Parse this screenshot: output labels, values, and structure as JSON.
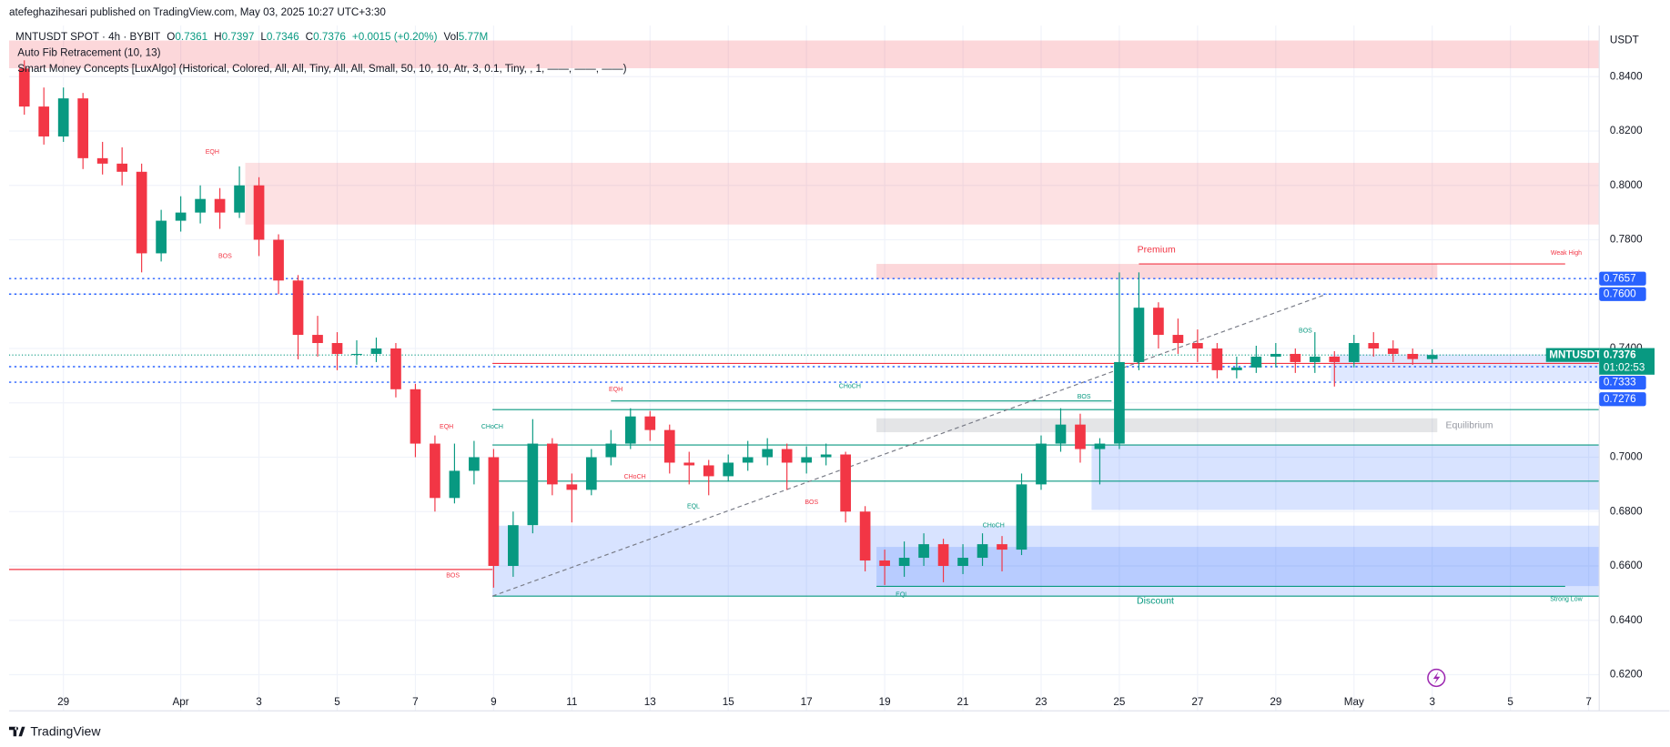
{
  "header": {
    "author_line": "atefeghazihesari published on TradingView.com, May 03, 2025 10:27 UTC+3:30"
  },
  "footer": {
    "brand": "TradingView"
  },
  "chart_data": {
    "type": "candlestick",
    "symbol": "MNTUSDT SPOT · 4h · BYBIT",
    "ohlc_legend": [
      {
        "label": "O",
        "value": "0.7361"
      },
      {
        "label": "H",
        "value": "0.7397"
      },
      {
        "label": "L",
        "value": "0.7346"
      },
      {
        "label": "C",
        "value": "0.7376"
      }
    ],
    "change": "+0.0015 (+0.20%)",
    "volume_label": "Vol",
    "volume": "5.77M",
    "indicators": [
      "Auto Fib Retracement (10, 13)",
      "Smart Money Concepts [LuxAlgo] (Historical, Colored, All, All, Tiny, All, All, Small, 50, 10, 10, Atr, 3, 0.1, Tiny, , 1, ——, ——, ——)"
    ],
    "currency": "USDT",
    "ticker": "MNTUSDT",
    "last_price": 0.7376,
    "countdown": "01:02:53",
    "up_color": "#089981",
    "down_color": "#f23645",
    "grid": true,
    "xlim": [
      -0.39,
      40.27
    ],
    "ylim": [
      0.6067,
      0.8588
    ],
    "xticks": [
      {
        "value": 1,
        "label": "29"
      },
      {
        "value": 4,
        "label": "Apr"
      },
      {
        "value": 6,
        "label": "3"
      },
      {
        "value": 8,
        "label": "5"
      },
      {
        "value": 10,
        "label": "7"
      },
      {
        "value": 12,
        "label": "9"
      },
      {
        "value": 14,
        "label": "11"
      },
      {
        "value": 16,
        "label": "13"
      },
      {
        "value": 18,
        "label": "15"
      },
      {
        "value": 20,
        "label": "17"
      },
      {
        "value": 22,
        "label": "19"
      },
      {
        "value": 24,
        "label": "21"
      },
      {
        "value": 26,
        "label": "23"
      },
      {
        "value": 28,
        "label": "25"
      },
      {
        "value": 30,
        "label": "27"
      },
      {
        "value": 32,
        "label": "29"
      },
      {
        "value": 34,
        "label": "May"
      },
      {
        "value": 36,
        "label": "3"
      },
      {
        "value": 38,
        "label": "5"
      },
      {
        "value": 40,
        "label": "7"
      }
    ],
    "yticks": [
      {
        "value": 0.62,
        "label": "0.6200"
      },
      {
        "value": 0.64,
        "label": "0.6400"
      },
      {
        "value": 0.66,
        "label": "0.6600"
      },
      {
        "value": 0.68,
        "label": "0.6800"
      },
      {
        "value": 0.7,
        "label": "0.7000"
      },
      {
        "value": 0.72,
        "label": "0.7200"
      },
      {
        "value": 0.74,
        "label": "0.7400"
      },
      {
        "value": 0.76,
        "label": "0.7600"
      },
      {
        "value": 0.78,
        "label": "0.7800"
      },
      {
        "value": 0.8,
        "label": "0.8000"
      },
      {
        "value": 0.82,
        "label": "0.8200"
      },
      {
        "value": 0.84,
        "label": "0.8400"
      }
    ],
    "x": [
      0,
      0.5,
      1,
      1.5,
      2,
      2.5,
      3,
      3.5,
      4,
      4.5,
      5,
      5.5,
      6,
      6.5,
      7,
      7.5,
      8,
      8.5,
      9,
      9.5,
      10,
      10.5,
      11,
      11.5,
      12,
      12.5,
      13,
      13.5,
      14,
      14.5,
      15,
      15.5,
      16,
      16.5,
      17,
      17.5,
      18,
      18.5,
      19,
      19.5,
      20,
      20.5,
      21,
      21.5,
      22,
      22.5,
      23,
      23.5,
      24,
      24.5,
      25,
      25.5,
      26,
      26.5,
      27,
      27.5,
      28,
      28.5,
      29,
      29.5,
      30,
      30.5,
      31,
      31.5,
      32,
      32.5,
      33,
      33.5,
      34,
      34.5,
      35,
      35.5,
      36
    ],
    "candles": [
      [
        0.843,
        0.846,
        0.826,
        0.829
      ],
      [
        0.829,
        0.836,
        0.815,
        0.818
      ],
      [
        0.818,
        0.836,
        0.816,
        0.832
      ],
      [
        0.832,
        0.834,
        0.806,
        0.81
      ],
      [
        0.81,
        0.816,
        0.804,
        0.808
      ],
      [
        0.808,
        0.814,
        0.8,
        0.805
      ],
      [
        0.805,
        0.808,
        0.768,
        0.775
      ],
      [
        0.775,
        0.791,
        0.772,
        0.787
      ],
      [
        0.787,
        0.796,
        0.783,
        0.79
      ],
      [
        0.79,
        0.8,
        0.786,
        0.795
      ],
      [
        0.795,
        0.799,
        0.784,
        0.79
      ],
      [
        0.79,
        0.807,
        0.788,
        0.8
      ],
      [
        0.8,
        0.803,
        0.774,
        0.78
      ],
      [
        0.78,
        0.782,
        0.76,
        0.765
      ],
      [
        0.765,
        0.767,
        0.736,
        0.745
      ],
      [
        0.745,
        0.752,
        0.737,
        0.742
      ],
      [
        0.742,
        0.746,
        0.732,
        0.738
      ],
      [
        0.738,
        0.743,
        0.734,
        0.738
      ],
      [
        0.738,
        0.744,
        0.735,
        0.74
      ],
      [
        0.74,
        0.742,
        0.722,
        0.725
      ],
      [
        0.725,
        0.727,
        0.7,
        0.705
      ],
      [
        0.705,
        0.708,
        0.68,
        0.685
      ],
      [
        0.685,
        0.705,
        0.683,
        0.695
      ],
      [
        0.695,
        0.706,
        0.69,
        0.7
      ],
      [
        0.7,
        0.703,
        0.652,
        0.66
      ],
      [
        0.66,
        0.68,
        0.656,
        0.675
      ],
      [
        0.675,
        0.714,
        0.672,
        0.705
      ],
      [
        0.705,
        0.707,
        0.686,
        0.69
      ],
      [
        0.69,
        0.694,
        0.676,
        0.688
      ],
      [
        0.688,
        0.703,
        0.686,
        0.7
      ],
      [
        0.7,
        0.71,
        0.697,
        0.705
      ],
      [
        0.705,
        0.718,
        0.703,
        0.715
      ],
      [
        0.715,
        0.717,
        0.706,
        0.71
      ],
      [
        0.71,
        0.712,
        0.694,
        0.698
      ],
      [
        0.698,
        0.702,
        0.69,
        0.697
      ],
      [
        0.697,
        0.699,
        0.686,
        0.693
      ],
      [
        0.693,
        0.701,
        0.691,
        0.698
      ],
      [
        0.698,
        0.706,
        0.695,
        0.7
      ],
      [
        0.7,
        0.707,
        0.697,
        0.703
      ],
      [
        0.703,
        0.705,
        0.688,
        0.698
      ],
      [
        0.698,
        0.704,
        0.694,
        0.7
      ],
      [
        0.7,
        0.705,
        0.697,
        0.701
      ],
      [
        0.701,
        0.702,
        0.676,
        0.68
      ],
      [
        0.68,
        0.682,
        0.658,
        0.662
      ],
      [
        0.662,
        0.666,
        0.653,
        0.66
      ],
      [
        0.66,
        0.669,
        0.656,
        0.663
      ],
      [
        0.663,
        0.672,
        0.66,
        0.668
      ],
      [
        0.668,
        0.67,
        0.654,
        0.66
      ],
      [
        0.66,
        0.668,
        0.657,
        0.663
      ],
      [
        0.663,
        0.672,
        0.66,
        0.668
      ],
      [
        0.668,
        0.671,
        0.658,
        0.666
      ],
      [
        0.666,
        0.694,
        0.664,
        0.69
      ],
      [
        0.69,
        0.708,
        0.688,
        0.705
      ],
      [
        0.705,
        0.718,
        0.702,
        0.712
      ],
      [
        0.712,
        0.716,
        0.698,
        0.703
      ],
      [
        0.703,
        0.707,
        0.69,
        0.705
      ],
      [
        0.705,
        0.768,
        0.703,
        0.735
      ],
      [
        0.735,
        0.768,
        0.732,
        0.755
      ],
      [
        0.755,
        0.757,
        0.74,
        0.745
      ],
      [
        0.745,
        0.751,
        0.738,
        0.742
      ],
      [
        0.742,
        0.747,
        0.735,
        0.74
      ],
      [
        0.74,
        0.742,
        0.729,
        0.732
      ],
      [
        0.732,
        0.737,
        0.729,
        0.733
      ],
      [
        0.733,
        0.741,
        0.731,
        0.737
      ],
      [
        0.737,
        0.742,
        0.733,
        0.738
      ],
      [
        0.738,
        0.74,
        0.731,
        0.735
      ],
      [
        0.735,
        0.746,
        0.731,
        0.737
      ],
      [
        0.737,
        0.739,
        0.726,
        0.735
      ],
      [
        0.735,
        0.745,
        0.733,
        0.742
      ],
      [
        0.742,
        0.746,
        0.737,
        0.74
      ],
      [
        0.74,
        0.743,
        0.735,
        0.738
      ],
      [
        0.738,
        0.74,
        0.734,
        0.7361
      ],
      [
        0.7361,
        0.7397,
        0.7346,
        0.7376
      ]
    ],
    "zones": [
      {
        "x": [
          -0.39,
          40.27
        ],
        "y": [
          0.8431,
          0.8533
        ],
        "color": "rgba(242,54,69,0.2)"
      },
      {
        "x": [
          5.65,
          40.27
        ],
        "y": [
          0.7856,
          0.8083
        ],
        "color": "rgba(242,54,69,0.15)"
      },
      {
        "x": [
          21.79,
          36.13
        ],
        "y": [
          0.7656,
          0.7711
        ],
        "color": "rgba(242,54,69,0.2)"
      },
      {
        "x": [
          21.79,
          36.13
        ],
        "y": [
          0.7092,
          0.7143
        ],
        "color": "rgba(120,123,134,0.2)"
      },
      {
        "x": [
          11.97,
          40.27
        ],
        "y": [
          0.6489,
          0.6748
        ],
        "color": "rgba(41,98,255,0.18)"
      },
      {
        "x": [
          21.79,
          40.27
        ],
        "y": [
          0.6526,
          0.667
        ],
        "color": "rgba(41,98,255,0.18)"
      },
      {
        "x": [
          27.29,
          40.27
        ],
        "y": [
          0.6806,
          0.7045
        ],
        "color": "rgba(41,98,255,0.18)"
      },
      {
        "x": [
          33.41,
          40.27
        ],
        "y": [
          0.728,
          0.7378
        ],
        "color": "rgba(41,98,255,0.15)"
      }
    ],
    "lines": [
      {
        "y": 0.7345,
        "x": [
          11.97,
          40.27
        ],
        "color": "#f23645"
      },
      {
        "y": 0.7207,
        "x": [
          15,
          27.8
        ],
        "color": "#089981"
      },
      {
        "y": 0.7175,
        "x": [
          11.97,
          40.27
        ],
        "color": "#089981"
      },
      {
        "y": 0.7045,
        "x": [
          11.97,
          40.27
        ],
        "color": "#089981"
      },
      {
        "y": 0.6912,
        "x": [
          11.97,
          40.27
        ],
        "color": "#089981"
      },
      {
        "y": 0.6587,
        "x": [
          -0.39,
          11.97
        ],
        "color": "#f23645"
      },
      {
        "y": 0.6489,
        "x": [
          11.97,
          40.27
        ],
        "color": "#089981"
      },
      {
        "y": 0.7711,
        "x": [
          28.5,
          39.4
        ],
        "color": "#f23645"
      },
      {
        "y": 0.6525,
        "x": [
          21.79,
          39.4
        ],
        "color": "#089981"
      }
    ],
    "levels": [
      {
        "value": 0.7657,
        "color": "#2962ff"
      },
      {
        "value": {
          "value": 0.76,
          "label": "0.7600"
        },
        "color": "#2962ff"
      },
      {
        "value": 0.7333,
        "color": "#2962ff"
      },
      {
        "value": 0.7276,
        "color": "#2962ff"
      }
    ],
    "fib_line": {
      "x": [
        11.97,
        33.3
      ],
      "y": [
        0.6489,
        0.76
      ]
    },
    "annotations": [
      {
        "text": "EQH",
        "color": "#f23645"
      },
      {
        "text": "BOS",
        "color": "#f23645"
      },
      {
        "text": "EQH",
        "color": "#f23645"
      },
      {
        "text": "CHoCH",
        "color": "#089981"
      },
      {
        "text": "BOS",
        "color": "#f23645"
      },
      {
        "text": "EQH",
        "color": "#f23645"
      },
      {
        "text": "CHoCH",
        "color": "#f23645"
      },
      {
        "text": "EQL",
        "color": "#089981"
      },
      {
        "text": "BOS",
        "color": "#f23645"
      },
      {
        "text": "CHoCH",
        "color": "#089981"
      },
      {
        "text": "CHoCH",
        "color": "#089981"
      },
      {
        "text": "EQL",
        "color": "#089981"
      },
      {
        "text": "BOS",
        "color": "#089981"
      },
      {
        "text": "BOS",
        "color": "#089981"
      },
      {
        "text": "Premium",
        "color": "#f23645"
      },
      {
        "text": "Equilibrium",
        "color": "#9598a1"
      },
      {
        "text": "Discount",
        "color": "#089981"
      },
      {
        "text": "Weak High",
        "color": "#f23645"
      },
      {
        "text": "Strong Low",
        "color": "#089981"
      }
    ]
  }
}
